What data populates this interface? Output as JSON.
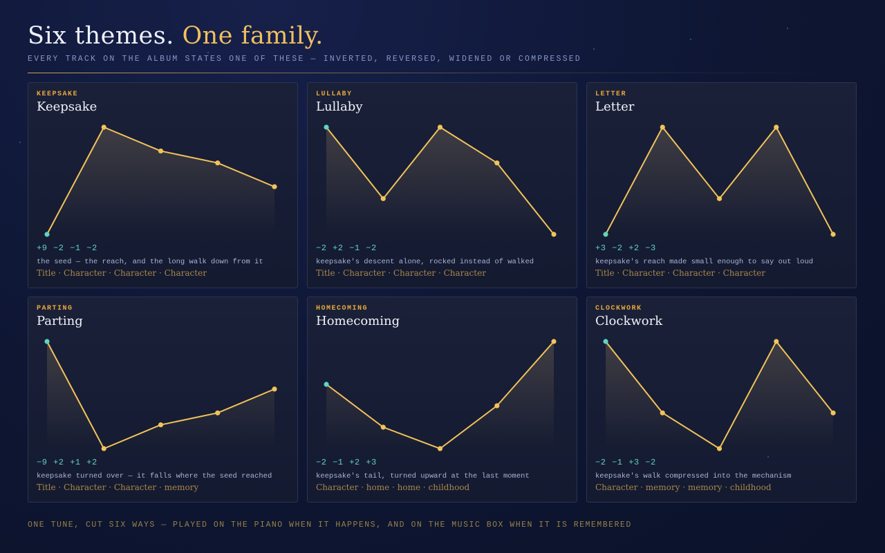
{
  "header": {
    "title": "Six themes.",
    "title_accent": "One family.",
    "subtitle": "EVERY TRACK ON THE ALBUM STATES ONE OF THESE — INVERTED, REVERSED, WIDENED OR COMPRESSED"
  },
  "cards": [
    {
      "label": "KEEPSAKE",
      "title": "Keepsake",
      "contour": [
        0,
        9,
        7,
        6,
        4
      ],
      "intervals": "+9 −2 −1 −2",
      "description": "the seed — the reach, and the long walk down from it",
      "tags": "Title · Character · Character · Character"
    },
    {
      "label": "LULLABY",
      "title": "Lullaby",
      "contour": [
        0,
        -2,
        0,
        -1,
        -3
      ],
      "intervals": "−2 +2 −1 −2",
      "description": "keepsake's descent alone, rocked instead of walked",
      "tags": "Title · Character · Character · Character"
    },
    {
      "label": "LETTER",
      "title": "Letter",
      "contour": [
        0,
        3,
        1,
        3,
        0
      ],
      "intervals": "+3 −2 +2 −3",
      "description": "keepsake's reach made small enough to say out loud",
      "tags": "Title · Character · Character · Character"
    },
    {
      "label": "PARTING",
      "title": "Parting",
      "contour": [
        0,
        -9,
        -7,
        -6,
        -4
      ],
      "intervals": "−9 +2 +1 +2",
      "description": "keepsake turned over — it falls where the seed reached",
      "tags": "Title · Character · Character · memory"
    },
    {
      "label": "HOMECOMING",
      "title": "Homecoming",
      "contour": [
        0,
        -2,
        -3,
        -1,
        2
      ],
      "intervals": "−2 −1 +2 +3",
      "description": "keepsake's tail, turned upward at the last moment",
      "tags": "Character · home · home · childhood"
    },
    {
      "label": "CLOCKWORK",
      "title": "Clockwork",
      "contour": [
        0,
        -2,
        -3,
        0,
        -2
      ],
      "intervals": "−2 −1 +3 −2",
      "description": "keepsake's walk compressed into the mechanism",
      "tags": "Character · memory · memory · childhood"
    }
  ],
  "footer": "ONE TUNE, CUT SIX WAYS — PLAYED ON THE PIANO WHEN IT HAPPENS, AND ON THE MUSIC BOX WHEN IT IS REMEMBERED"
}
